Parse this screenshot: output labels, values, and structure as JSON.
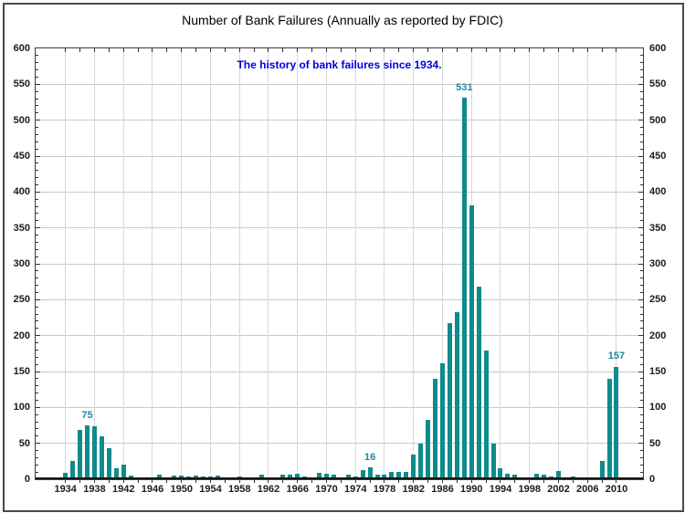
{
  "chart_data": {
    "type": "bar",
    "title": "Number of Bank Failures (Annually as reported by FDIC)",
    "subtitle": "The history of bank failures since 1934.",
    "xlabel": "",
    "ylabel": "",
    "year_start": 1934,
    "year_end": 2010,
    "categories": [
      1934,
      1935,
      1936,
      1937,
      1938,
      1939,
      1940,
      1941,
      1942,
      1943,
      1944,
      1945,
      1946,
      1947,
      1948,
      1949,
      1950,
      1951,
      1952,
      1953,
      1954,
      1955,
      1956,
      1957,
      1958,
      1959,
      1960,
      1961,
      1962,
      1963,
      1964,
      1965,
      1966,
      1967,
      1968,
      1969,
      1970,
      1971,
      1972,
      1973,
      1974,
      1975,
      1976,
      1977,
      1978,
      1979,
      1980,
      1981,
      1982,
      1983,
      1984,
      1985,
      1986,
      1987,
      1988,
      1989,
      1990,
      1991,
      1992,
      1993,
      1994,
      1995,
      1996,
      1997,
      1998,
      1999,
      2000,
      2001,
      2002,
      2003,
      2004,
      2005,
      2006,
      2007,
      2008,
      2009,
      2010
    ],
    "values": [
      9,
      25,
      69,
      75,
      74,
      60,
      43,
      15,
      20,
      5,
      2,
      1,
      2,
      6,
      3,
      5,
      5,
      4,
      5,
      4,
      4,
      5,
      3,
      3,
      4,
      3,
      2,
      7,
      2,
      2,
      7,
      7,
      8,
      4,
      3,
      9,
      8,
      6,
      2,
      6,
      4,
      13,
      16,
      6,
      7,
      10,
      10,
      10,
      34,
      50,
      83,
      140,
      162,
      217,
      233,
      531,
      381,
      268,
      179,
      50,
      15,
      8,
      6,
      1,
      3,
      8,
      7,
      4,
      11,
      3,
      4,
      0,
      0,
      3,
      25,
      140,
      157
    ],
    "ylim": [
      0,
      600
    ],
    "y_ticks": [
      0,
      50,
      100,
      150,
      200,
      250,
      300,
      350,
      400,
      450,
      500,
      550,
      600
    ],
    "y_tick_labels": [
      "0",
      "50",
      "100",
      "150",
      "200",
      "250",
      "300",
      "350",
      "400",
      "450",
      "500",
      "550",
      "600"
    ],
    "y_minor_step": 10,
    "x_tick_labels": [
      "1934",
      "1938",
      "1942",
      "1946",
      "1950",
      "1954",
      "1958",
      "1962",
      "1966",
      "1970",
      "1974",
      "1978",
      "1982",
      "1986",
      "1990",
      "1994",
      "1998",
      "2002",
      "2006",
      "2010"
    ],
    "x_minor_step_years": 2,
    "grid": true,
    "legend": "none",
    "annotations": [
      {
        "year": 1937,
        "text": "75"
      },
      {
        "year": 1976,
        "text": "16"
      },
      {
        "year": 1989,
        "text": "531"
      },
      {
        "year": 2010,
        "text": "157"
      }
    ],
    "colors": {
      "bar": "#0d8b8d",
      "annotation": "#1b89a0",
      "subtitle": "#0000dd",
      "title": "#000000",
      "axis_text": "#1c1c1c",
      "h_gridline": "#c9c9c9",
      "v_gridline": "#d8d8d8",
      "plot_border": "#3c3c3c",
      "frame_border": "#4a4a4a",
      "background": "#ffffff"
    }
  }
}
